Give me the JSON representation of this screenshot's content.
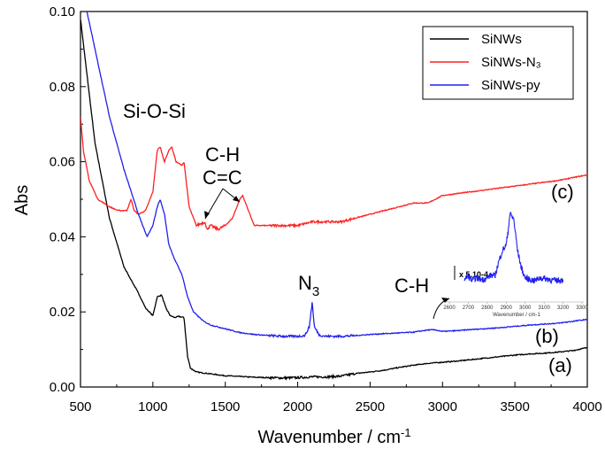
{
  "chart_data": {
    "type": "line",
    "xlabel": "Wavenumber / cm",
    "xlabel_sup": "-1",
    "ylabel": "Abs",
    "xlim": [
      500,
      4000
    ],
    "ylim": [
      0,
      0.1
    ],
    "x_ticks": [
      "500",
      "1000",
      "1500",
      "2000",
      "2500",
      "3000",
      "3500",
      "4000"
    ],
    "y_ticks": [
      "0.00",
      "0.02",
      "0.04",
      "0.06",
      "0.08",
      "0.10"
    ],
    "grid": false,
    "legend_position": "top-right",
    "series": [
      {
        "name": "SiNWs",
        "color": "#000000",
        "tag": "(a)",
        "x": [
          500,
          600,
          700,
          800,
          900,
          950,
          1000,
          1030,
          1060,
          1090,
          1120,
          1150,
          1180,
          1215,
          1240,
          1260,
          1300,
          1400,
          1500,
          1600,
          1700,
          1800,
          1900,
          2000,
          2100,
          2200,
          2300,
          2400,
          2500,
          2600,
          2700,
          2800,
          2900,
          3000,
          3100,
          3200,
          3300,
          3400,
          3500,
          3600,
          3700,
          3800,
          3900,
          4000
        ],
        "y": [
          0.098,
          0.065,
          0.045,
          0.032,
          0.025,
          0.021,
          0.019,
          0.024,
          0.0245,
          0.021,
          0.019,
          0.0185,
          0.0188,
          0.0185,
          0.008,
          0.005,
          0.004,
          0.0035,
          0.003,
          0.0028,
          0.0026,
          0.0025,
          0.0024,
          0.0025,
          0.0027,
          0.0027,
          0.0029,
          0.0036,
          0.004,
          0.0045,
          0.0052,
          0.0058,
          0.0063,
          0.0066,
          0.0069,
          0.0073,
          0.0077,
          0.0081,
          0.0085,
          0.0088,
          0.009,
          0.0093,
          0.0097,
          0.0105
        ]
      },
      {
        "name": "SiNWs-N₃",
        "color": "#ff2020",
        "tag": "(c)",
        "x": [
          500,
          520,
          560,
          620,
          700,
          760,
          820,
          850,
          870,
          900,
          950,
          1000,
          1030,
          1050,
          1080,
          1110,
          1130,
          1160,
          1200,
          1215,
          1250,
          1300,
          1360,
          1370,
          1400,
          1450,
          1500,
          1550,
          1600,
          1620,
          1650,
          1700,
          1800,
          1900,
          2000,
          2100,
          2200,
          2300,
          2400,
          2500,
          2600,
          2700,
          2800,
          2900,
          3000,
          3200,
          3400,
          3600,
          3800,
          4000
        ],
        "y": [
          0.072,
          0.063,
          0.055,
          0.05,
          0.048,
          0.047,
          0.047,
          0.05,
          0.047,
          0.046,
          0.047,
          0.052,
          0.063,
          0.064,
          0.06,
          0.063,
          0.064,
          0.06,
          0.059,
          0.06,
          0.048,
          0.043,
          0.044,
          0.042,
          0.043,
          0.042,
          0.043,
          0.045,
          0.05,
          0.051,
          0.048,
          0.043,
          0.043,
          0.043,
          0.043,
          0.044,
          0.044,
          0.044,
          0.045,
          0.046,
          0.047,
          0.048,
          0.049,
          0.049,
          0.051,
          0.052,
          0.053,
          0.054,
          0.055,
          0.0565
        ]
      },
      {
        "name": "SiNWs-py",
        "color": "#2020ee",
        "tag": "(b)",
        "x": [
          500,
          600,
          700,
          800,
          900,
          960,
          1000,
          1030,
          1050,
          1080,
          1110,
          1150,
          1200,
          1240,
          1280,
          1350,
          1400,
          1500,
          1600,
          1700,
          1800,
          1900,
          2000,
          2050,
          2080,
          2100,
          2115,
          2150,
          2200,
          2300,
          2400,
          2500,
          2600,
          2700,
          2800,
          2900,
          2950,
          3000,
          3100,
          3200,
          3400,
          3600,
          3800,
          4000
        ],
        "y": [
          0.108,
          0.09,
          0.072,
          0.058,
          0.046,
          0.04,
          0.043,
          0.048,
          0.05,
          0.046,
          0.038,
          0.034,
          0.03,
          0.024,
          0.02,
          0.0175,
          0.0165,
          0.0155,
          0.0145,
          0.014,
          0.0137,
          0.0135,
          0.0135,
          0.0137,
          0.016,
          0.0225,
          0.016,
          0.0138,
          0.0135,
          0.0135,
          0.0137,
          0.014,
          0.0142,
          0.0144,
          0.0146,
          0.0152,
          0.0152,
          0.0148,
          0.015,
          0.0153,
          0.0158,
          0.0165,
          0.017,
          0.018
        ]
      }
    ],
    "annotations": {
      "si_o_si": "Si-O-Si",
      "ch_top": "C-H",
      "cc": "C=C",
      "n3_main": "N",
      "n3_sub": "3",
      "ch_right": "C-H",
      "label_a": "(a)",
      "label_b": "(b)",
      "label_c": "(c)"
    },
    "inset": {
      "factor": "x 5.10-4",
      "xlabel": "Wavenumber / cm-1",
      "ticks": [
        "2600",
        "2700",
        "2800",
        "2900",
        "3000",
        "3100",
        "3200",
        "3300"
      ],
      "xlim": [
        2600,
        3300
      ],
      "x": [
        2680,
        2700,
        2720,
        2740,
        2760,
        2780,
        2800,
        2820,
        2840,
        2860,
        2880,
        2900,
        2910,
        2920,
        2940,
        2960,
        2980,
        3000,
        3020,
        3050,
        3080,
        3120,
        3160,
        3200
      ],
      "y": [
        0.3,
        0.4,
        0.25,
        0.35,
        0.3,
        0.3,
        0.35,
        0.45,
        0.4,
        0.9,
        1.3,
        1.5,
        2.0,
        2.6,
        2.4,
        1.3,
        0.7,
        0.35,
        0.3,
        0.25,
        0.35,
        0.3,
        0.25,
        0.28
      ]
    }
  }
}
